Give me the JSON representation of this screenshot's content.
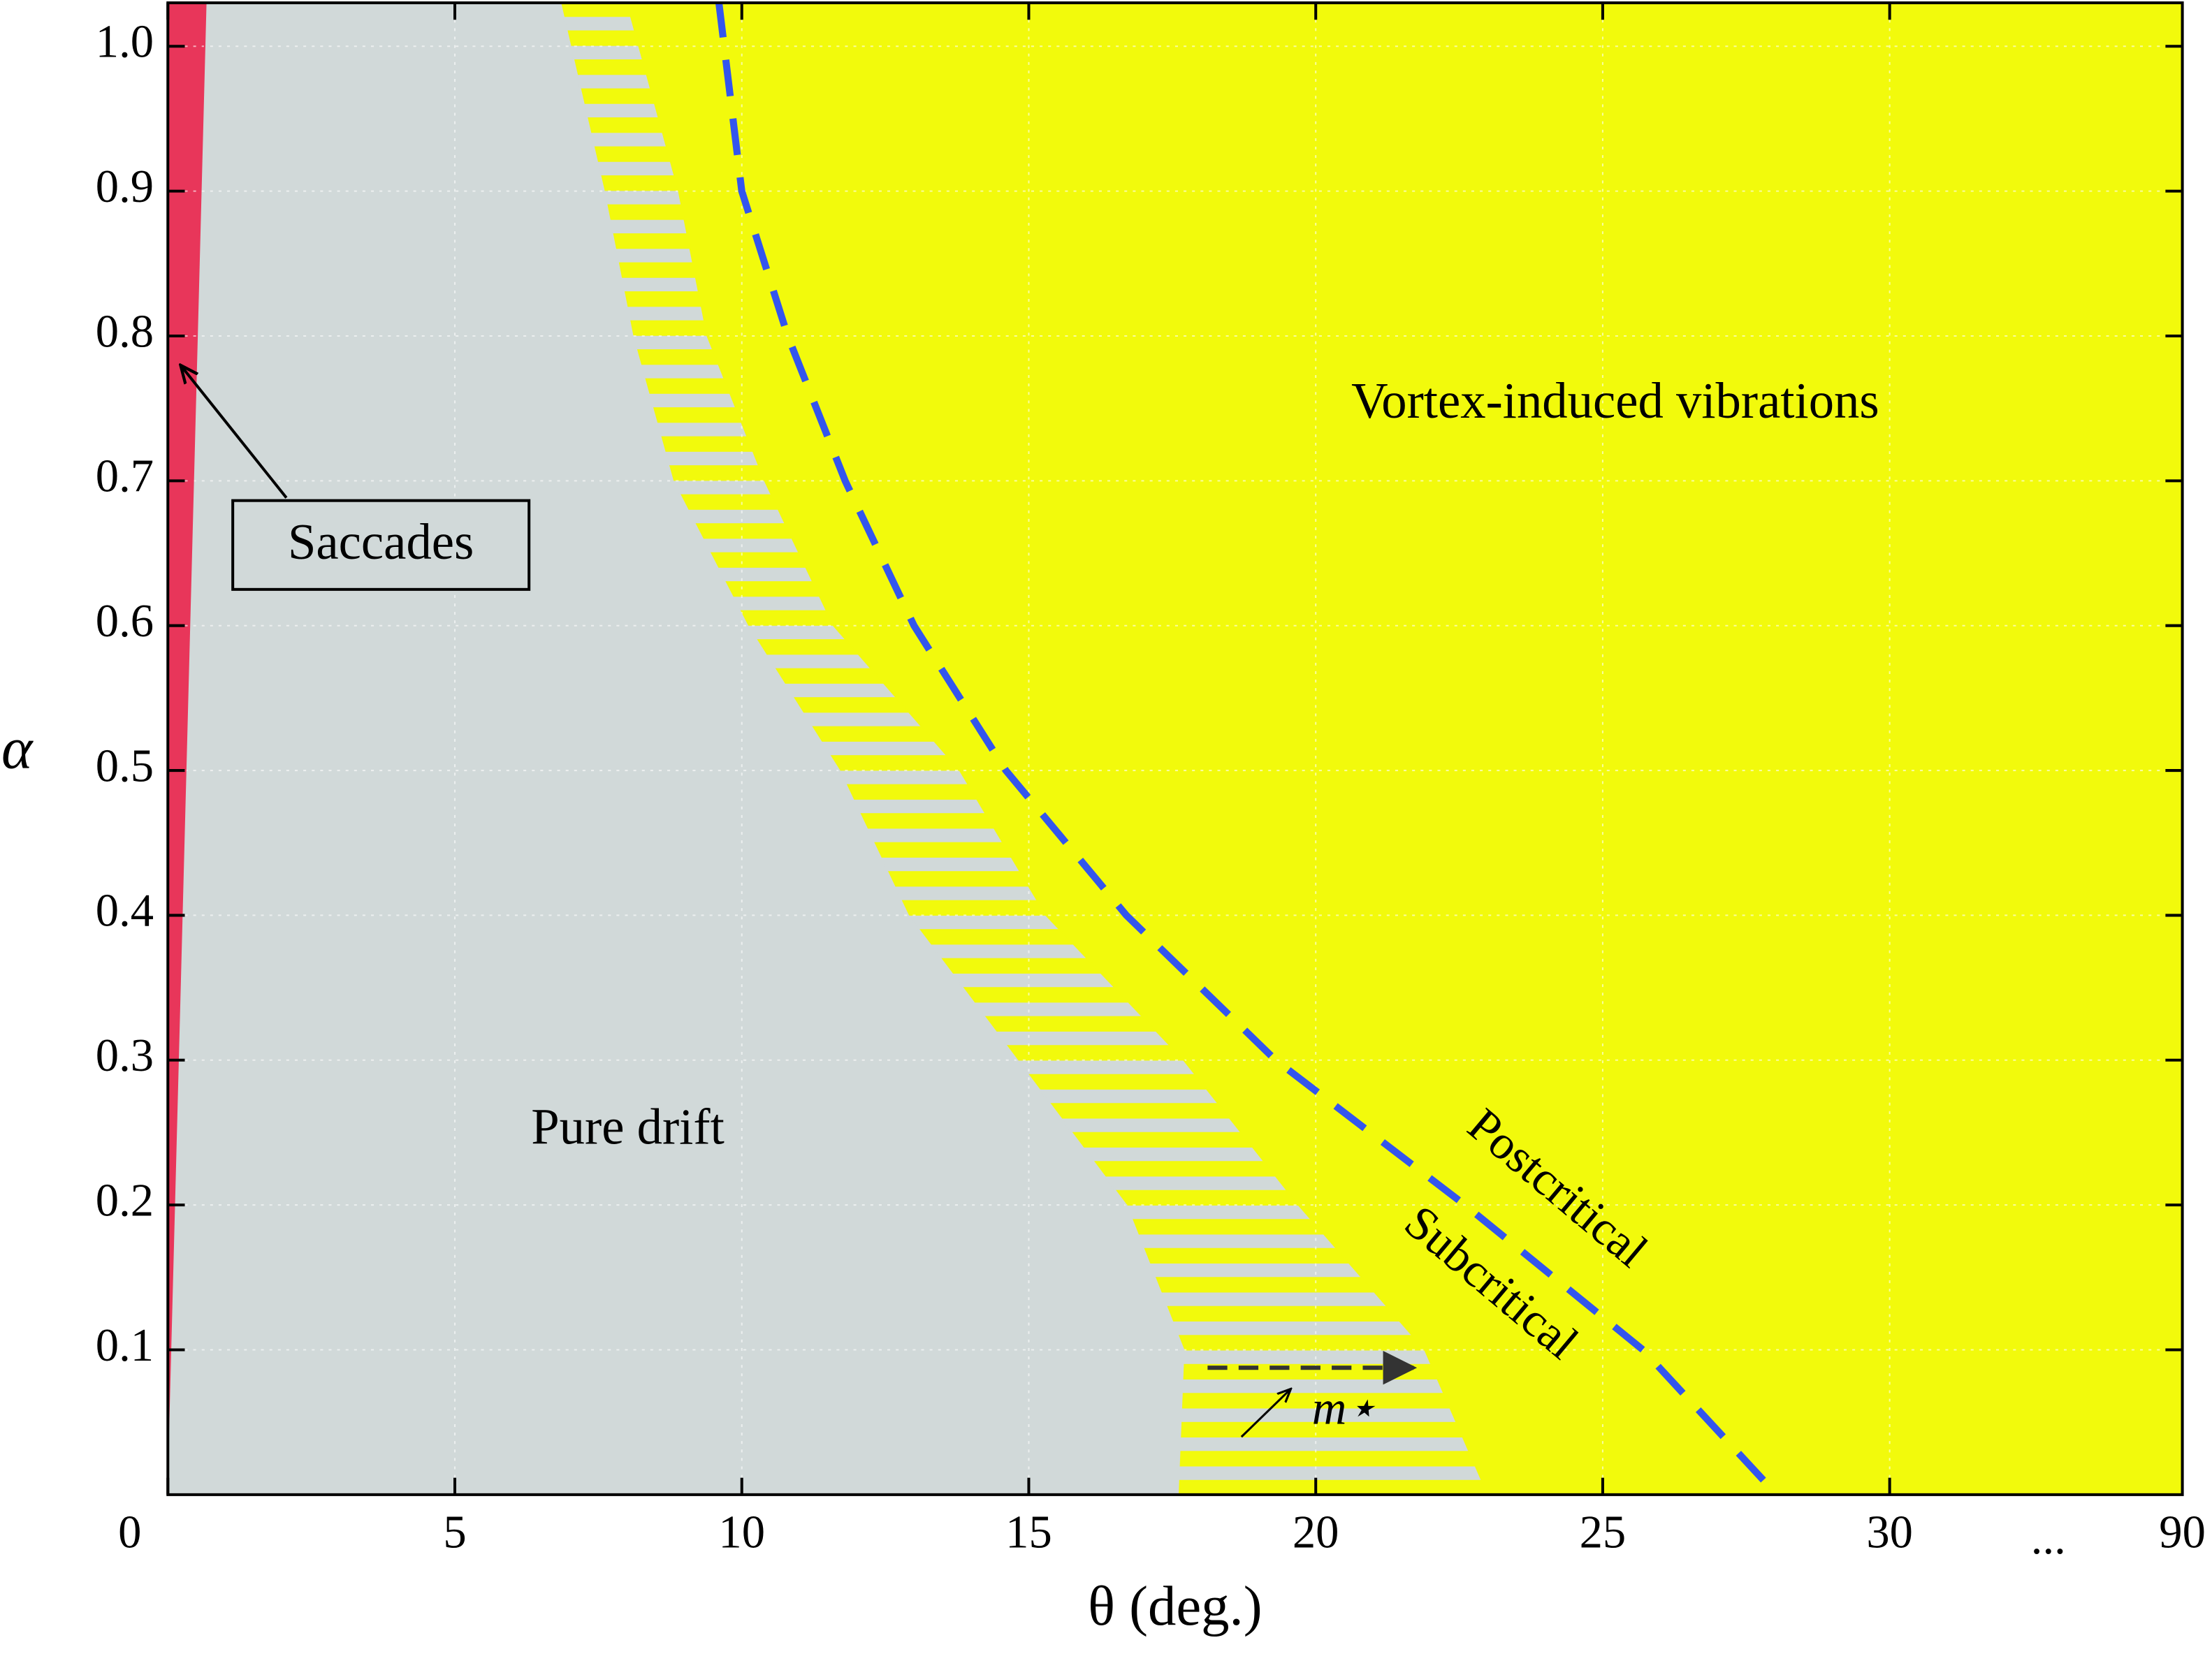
{
  "chart_data": {
    "type": "region",
    "x_label": "θ (deg.)",
    "y_label": "α",
    "xlim": [
      0,
      35.1
    ],
    "xticks": [
      0,
      5,
      10,
      15,
      20,
      25,
      30
    ],
    "x_break_label": "...",
    "x_end_label": 90,
    "ylim": [
      0,
      1.03
    ],
    "yticks": [
      0.1,
      0.2,
      0.3,
      0.4,
      0.5,
      0.6,
      0.7,
      0.8,
      0.9,
      {
        "value": 1,
        "label": "1.0"
      }
    ],
    "grid": true,
    "background_color": "#f2fa0c",
    "boundaries": [
      {
        "name": "Saccades",
        "color": "#e8365a",
        "x": [
          0,
          0.66
        ],
        "y": [
          0.03,
          1.03
        ]
      },
      {
        "name": "Pure drift",
        "color": "#d1d9d9",
        "x": [
          17.6,
          17.7,
          16.7,
          14.8,
          12.9,
          11.7,
          10.1,
          8.8,
          8.1,
          7.6,
          6.84
        ],
        "y": [
          0,
          0.1,
          0.2,
          0.3,
          0.4,
          0.5,
          0.6,
          0.7,
          0.8,
          0.9,
          1.03
        ]
      },
      {
        "name": "Subcritical",
        "color": "#f2fa0c",
        "x": [
          23.0,
          21.9,
          19.7,
          17.7,
          15.3,
          13.8,
          11.6,
          10.4,
          9.4,
          8.9,
          8.0
        ],
        "y": [
          0,
          0.1,
          0.2,
          0.3,
          0.4,
          0.5,
          0.6,
          0.7,
          0.8,
          0.9,
          1.03
        ]
      },
      {
        "name": "Postcritical",
        "color": "#3355ee",
        "x": [
          27.8,
          25.7,
          22.6,
          19.3,
          16.7,
          14.6,
          13.0,
          11.8,
          10.8,
          10.0,
          9.6
        ],
        "y": [
          0.01,
          0.1,
          0.2,
          0.3,
          0.4,
          0.5,
          0.6,
          0.7,
          0.8,
          0.9,
          1.03
        ]
      }
    ],
    "annotations": [
      "Vortex-induced vibrations",
      "m⋆"
    ]
  }
}
